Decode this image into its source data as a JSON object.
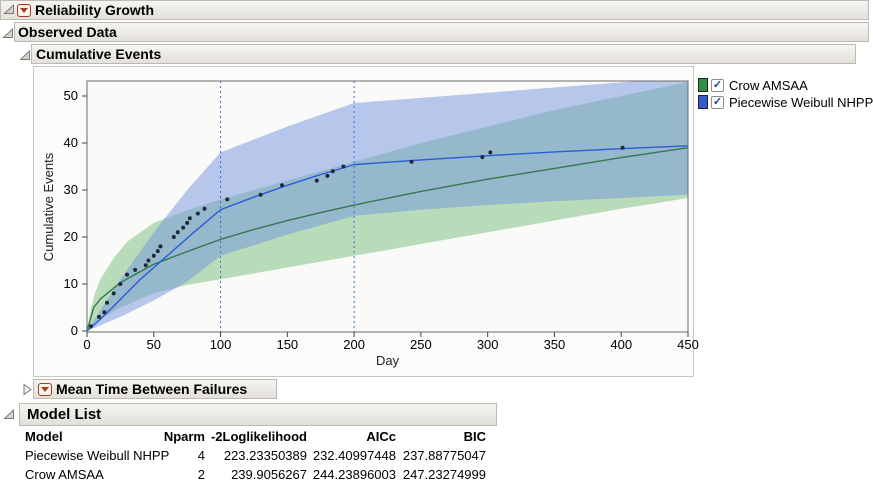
{
  "sections": {
    "reliability_growth": {
      "title": "Reliability Growth"
    },
    "observed_data": {
      "title": "Observed Data"
    },
    "cumulative_events": {
      "title": "Cumulative Events"
    },
    "mtbf": {
      "title": "Mean Time Between Failures",
      "collapsed": true
    },
    "model_list": {
      "title": "Model List"
    }
  },
  "legend": {
    "items": [
      {
        "label": "Crow AMSAA",
        "swatch_color": "#2e9147",
        "checked": true
      },
      {
        "label": "Piecewise Weibull NHPP",
        "swatch_color": "#3558cf",
        "checked": true
      }
    ]
  },
  "chart_data": {
    "type": "line",
    "title": "Cumulative Events",
    "xlabel": "Day",
    "ylabel": "Cumulative Events",
    "xlim": [
      0,
      450
    ],
    "ylim": [
      0,
      53.2
    ],
    "xticks": [
      0,
      50,
      100,
      150,
      200,
      250,
      300,
      350,
      400,
      450
    ],
    "yticks": [
      0,
      10,
      20,
      30,
      40,
      50
    ],
    "grid": false,
    "legend_position": "right",
    "phase_change_lines_x": [
      100,
      200
    ],
    "phase_line_color": "#3a6cd6",
    "point_color": "#1f2a36",
    "observed_points": [
      [
        3,
        1
      ],
      [
        9,
        3
      ],
      [
        13,
        4
      ],
      [
        15,
        6
      ],
      [
        20,
        8
      ],
      [
        25,
        10
      ],
      [
        30,
        12
      ],
      [
        36,
        13
      ],
      [
        44,
        14
      ],
      [
        46,
        15
      ],
      [
        50,
        16
      ],
      [
        53,
        17
      ],
      [
        55,
        18
      ],
      [
        65,
        20
      ],
      [
        68,
        21
      ],
      [
        72,
        22
      ],
      [
        75,
        23
      ],
      [
        77,
        24
      ],
      [
        83,
        25
      ],
      [
        88,
        26
      ],
      [
        105,
        28
      ],
      [
        130,
        29
      ],
      [
        146,
        31
      ],
      [
        172,
        32
      ],
      [
        180,
        33
      ],
      [
        184,
        34
      ],
      [
        192,
        35
      ],
      [
        243,
        36
      ],
      [
        296,
        37
      ],
      [
        302,
        38
      ],
      [
        401,
        39
      ]
    ],
    "series": [
      {
        "name": "Crow AMSAA",
        "color": "#35784f",
        "band_color": "rgba(130,195,135,0.55)",
        "line": [
          [
            0,
            0
          ],
          [
            5,
            5
          ],
          [
            10,
            6.8
          ],
          [
            25,
            10.3
          ],
          [
            50,
            14.2
          ],
          [
            75,
            16.9
          ],
          [
            100,
            19.5
          ],
          [
            125,
            21.6
          ],
          [
            150,
            23.5
          ],
          [
            175,
            25.2
          ],
          [
            200,
            26.8
          ],
          [
            250,
            29.7
          ],
          [
            300,
            32.3
          ],
          [
            350,
            34.6
          ],
          [
            400,
            36.9
          ],
          [
            450,
            39
          ]
        ],
        "band_upper": [
          [
            0,
            0
          ],
          [
            3,
            5
          ],
          [
            6,
            8
          ],
          [
            10,
            11
          ],
          [
            20,
            15.5
          ],
          [
            30,
            19
          ],
          [
            50,
            23
          ],
          [
            75,
            25.7
          ],
          [
            100,
            28
          ],
          [
            150,
            32
          ],
          [
            200,
            36
          ],
          [
            250,
            40
          ],
          [
            300,
            43.5
          ],
          [
            350,
            47
          ],
          [
            400,
            50
          ],
          [
            450,
            53
          ]
        ],
        "band_lower": [
          [
            0,
            0
          ],
          [
            10,
            2.5
          ],
          [
            25,
            5
          ],
          [
            50,
            8
          ],
          [
            75,
            9.8
          ],
          [
            100,
            11
          ],
          [
            150,
            13.5
          ],
          [
            200,
            16
          ],
          [
            250,
            18.5
          ],
          [
            300,
            21
          ],
          [
            350,
            23.5
          ],
          [
            400,
            26
          ],
          [
            450,
            28.3
          ]
        ]
      },
      {
        "name": "Piecewise Weibull NHPP",
        "color": "#2b5cd8",
        "band_color": "rgba(115,148,222,0.5)",
        "line": [
          [
            0,
            0
          ],
          [
            10,
            2.5
          ],
          [
            20,
            5.3
          ],
          [
            40,
            11
          ],
          [
            60,
            16
          ],
          [
            80,
            21
          ],
          [
            100,
            25.8
          ],
          [
            125,
            28.5
          ],
          [
            150,
            31
          ],
          [
            175,
            33.3
          ],
          [
            200,
            35.4
          ],
          [
            250,
            36.4
          ],
          [
            300,
            37.3
          ],
          [
            350,
            38.1
          ],
          [
            400,
            38.8
          ],
          [
            450,
            39.4
          ]
        ],
        "band_upper": [
          [
            0,
            0
          ],
          [
            25,
            11
          ],
          [
            50,
            21
          ],
          [
            75,
            30
          ],
          [
            100,
            38
          ],
          [
            150,
            43.5
          ],
          [
            200,
            48.5
          ],
          [
            250,
            49.6
          ],
          [
            300,
            50.7
          ],
          [
            350,
            51.8
          ],
          [
            400,
            52.9
          ],
          [
            450,
            54
          ]
        ],
        "band_lower": [
          [
            0,
            0
          ],
          [
            25,
            3
          ],
          [
            50,
            6.5
          ],
          [
            75,
            10.5
          ],
          [
            100,
            16
          ],
          [
            150,
            20.5
          ],
          [
            200,
            24.5
          ],
          [
            250,
            25.8
          ],
          [
            300,
            26.8
          ],
          [
            350,
            27.6
          ],
          [
            400,
            28.3
          ],
          [
            450,
            29
          ]
        ]
      }
    ]
  },
  "model_table": {
    "columns": [
      "Model",
      "Nparm",
      "-2Loglikelihood",
      "AICc",
      "BIC"
    ],
    "rows": [
      [
        "Piecewise Weibull NHPP",
        "4",
        "223.23350389",
        "232.40997448",
        "237.88775047"
      ],
      [
        "Crow AMSAA",
        "2",
        "239.9056267",
        "244.23896003",
        "247.23274999"
      ]
    ]
  }
}
